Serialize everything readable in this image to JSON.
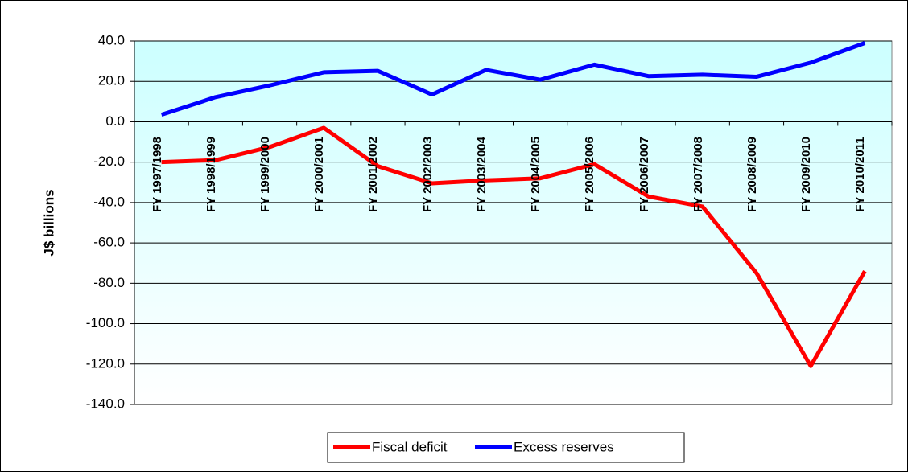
{
  "chart_data": {
    "type": "line",
    "ylabel": "J$ billions",
    "categories": [
      "FY 1997/1998",
      "FY 1998/1999",
      "FY 1999/2000",
      "FY 2000/2001",
      "FY 2001/2002",
      "FY 2002/2003",
      "FY 2003/2004",
      "FY 2004/2005",
      "FY 2005/2006",
      "FY 2006/2007",
      "FY 2007/2008",
      "FY 2008/2009",
      "FY 2009/2010",
      "FY 2010/2011"
    ],
    "series": [
      {
        "name": "Fiscal deficit",
        "color": "#ff0000",
        "values": [
          -20,
          -19,
          -12.5,
          -3,
          -22,
          -30.5,
          -29,
          -28,
          -21,
          -37,
          -42,
          -75,
          -121,
          -74
        ]
      },
      {
        "name": "Excess reserves",
        "color": "#0000ff",
        "values": [
          3.5,
          12.2,
          18,
          24.5,
          25.2,
          13.5,
          25.7,
          20.8,
          28.3,
          22.6,
          23.3,
          22.3,
          29.3,
          39
        ]
      }
    ],
    "ylim": [
      -140,
      40
    ],
    "yticks": [
      {
        "value": -140,
        "label": "-140.0"
      },
      {
        "value": -120,
        "label": "-120.0"
      },
      {
        "value": -100,
        "label": "-100.0"
      },
      {
        "value": -80,
        "label": "-80.0"
      },
      {
        "value": -60,
        "label": "-60.0"
      },
      {
        "value": -40,
        "label": "-40.0"
      },
      {
        "value": -20,
        "label": "-20.0"
      },
      {
        "value": 0,
        "label": "0.0"
      },
      {
        "value": 20,
        "label": "20.0"
      },
      {
        "value": 40,
        "label": "40.0"
      }
    ],
    "grid": true,
    "legend": "bottom"
  }
}
